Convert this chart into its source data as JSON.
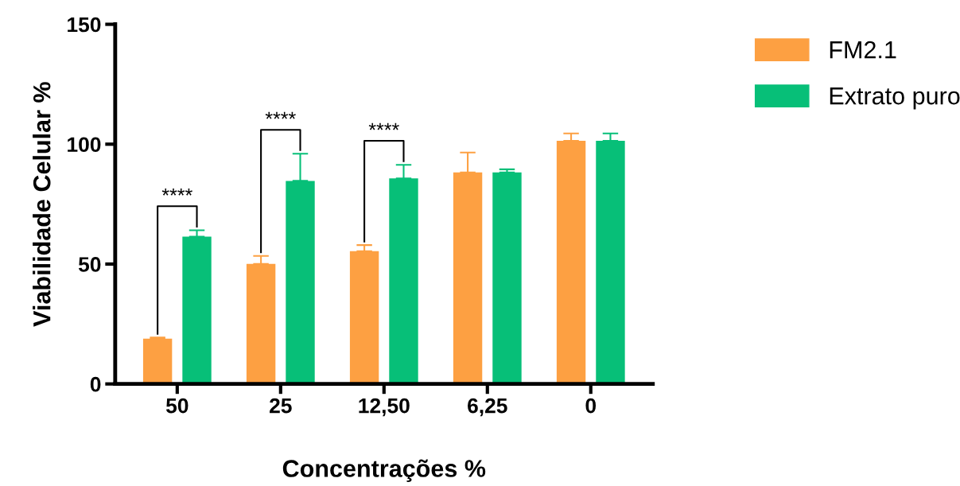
{
  "chart_data": {
    "type": "bar",
    "xlabel": "Concentrações %",
    "ylabel": "Viabilidade Celular %",
    "categories": [
      "50",
      "25",
      "12,50",
      "6,25",
      "0"
    ],
    "series": [
      {
        "name": "FM2.1",
        "color": "#fda042",
        "values": [
          18.9,
          50.1,
          55.4,
          88.2,
          101.4
        ],
        "errors": [
          [
            18.9,
            19.4
          ],
          [
            50.1,
            53.4
          ],
          [
            55.4,
            57.9
          ],
          [
            88.2,
            96.5
          ],
          [
            101.4,
            104.5
          ]
        ]
      },
      {
        "name": "Extrato puro",
        "color": "#07bf78",
        "values": [
          61.4,
          84.7,
          85.7,
          88.2,
          101.4
        ],
        "errors": [
          [
            61.4,
            64.1
          ],
          [
            84.7,
            96.0
          ],
          [
            85.7,
            91.4
          ],
          [
            88.2,
            89.5
          ],
          [
            101.4,
            104.5
          ]
        ]
      }
    ],
    "ylim": [
      0,
      150
    ],
    "yticks": [
      0,
      50,
      100,
      150
    ],
    "grid": false,
    "legend": "top right",
    "annotations": [
      "****",
      "****",
      "****"
    ]
  }
}
